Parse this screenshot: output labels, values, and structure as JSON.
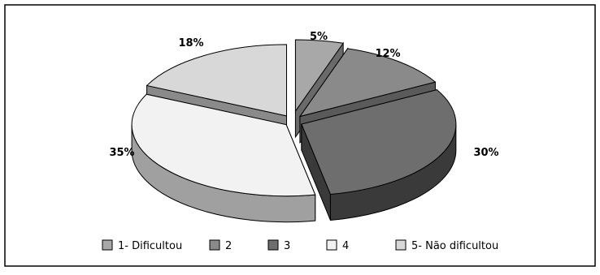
{
  "chart_data": {
    "type": "pie",
    "style": "3d-exploded",
    "categories": [
      "1- Dificultou",
      "2",
      "3",
      "4",
      "5- Não dificultou"
    ],
    "values": [
      5,
      12,
      30,
      35,
      18
    ],
    "data_labels": [
      "5%",
      "12%",
      "30%",
      "35%",
      "18%"
    ],
    "colors": {
      "top": [
        "#a8a8a8",
        "#8a8a8a",
        "#6e6e6e",
        "#f2f2f2",
        "#d8d8d8"
      ],
      "side": [
        "#6a6a6a",
        "#5a5a5a",
        "#3a3a3a",
        "#a0a0a0",
        "#8a8a8a"
      ],
      "outline": "#000000"
    },
    "legend_position": "bottom",
    "border": true
  }
}
